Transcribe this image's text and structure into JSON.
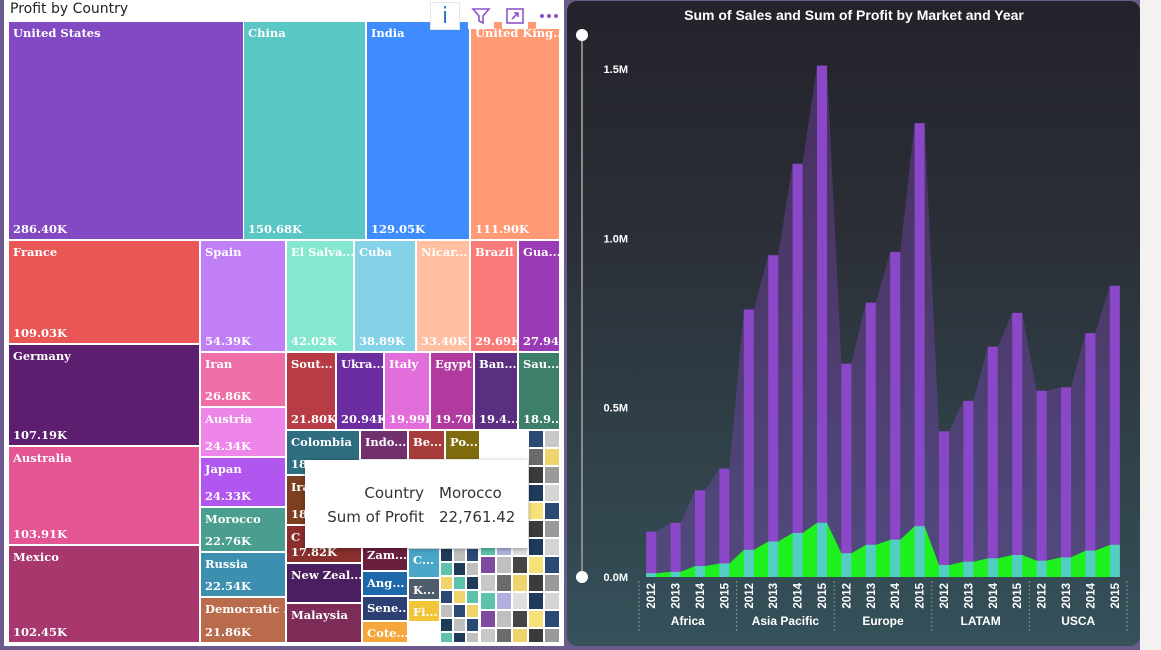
{
  "treemap": {
    "title": "Profit by Country",
    "toolbar": {
      "info_glyph": "i",
      "icons": [
        "filter-icon",
        "focus-mode-icon",
        "more-options-icon"
      ]
    },
    "tiles": [
      {
        "name": "United States",
        "value": "286.40K",
        "color": "#8249c2"
      },
      {
        "name": "China",
        "value": "150.68K",
        "color": "#5ac7c5"
      },
      {
        "name": "India",
        "value": "129.05K",
        "color": "#3f8cff"
      },
      {
        "name": "United King...",
        "value": "111.90K",
        "color": "#ff9a75"
      },
      {
        "name": "France",
        "value": "109.03K",
        "color": "#ea5556"
      },
      {
        "name": "Germany",
        "value": "107.19K",
        "color": "#5c1f6f"
      },
      {
        "name": "Australia",
        "value": "103.91K",
        "color": "#e35593"
      },
      {
        "name": "Mexico",
        "value": "102.45K",
        "color": "#a8376d"
      },
      {
        "name": "Spain",
        "value": "54.39K",
        "color": "#c07ff4"
      },
      {
        "name": "El Salva...",
        "value": "42.02K",
        "color": "#84e7cf"
      },
      {
        "name": "Cuba",
        "value": "38.89K",
        "color": "#84d2e8"
      },
      {
        "name": "Nicar...",
        "value": "33.40K",
        "color": "#ffbfa0"
      },
      {
        "name": "Brazil",
        "value": "29.69K",
        "color": "#f87b7a"
      },
      {
        "name": "Gua...",
        "value": "27.94K",
        "color": "#9a3ab4"
      },
      {
        "name": "Iran",
        "value": "26.86K",
        "color": "#ee6fa7"
      },
      {
        "name": "Austria",
        "value": "24.34K",
        "color": "#ee86ea"
      },
      {
        "name": "Japan",
        "value": "24.33K",
        "color": "#b256f0"
      },
      {
        "name": "Morocco",
        "value": "22.76K",
        "color": "#4a9e8f"
      },
      {
        "name": "Russia",
        "value": "22.54K",
        "color": "#3d8fb0"
      },
      {
        "name": "Democratic ...",
        "value": "21.86K",
        "color": "#ba6b4c"
      },
      {
        "name": "Sout...",
        "value": "21.80K",
        "color": "#b83c45"
      },
      {
        "name": "Ukra...",
        "value": "20.94K",
        "color": "#6c2da0"
      },
      {
        "name": "Italy",
        "value": "19.99K",
        "color": "#e26edc"
      },
      {
        "name": "Egypt",
        "value": "19.70K",
        "color": "#b13a9f"
      },
      {
        "name": "Ban...",
        "value": "19.4...",
        "color": "#5a2e80"
      },
      {
        "name": "Sau...",
        "value": "18.9...",
        "color": "#3e7f6c"
      },
      {
        "name": "Colombia",
        "value": "18",
        "color": "#2f6d80"
      },
      {
        "name": "Indo...",
        "value": "",
        "color": "#73306f"
      },
      {
        "name": "Be...",
        "value": "",
        "color": "#a73c3c"
      },
      {
        "name": "Po...",
        "value": "",
        "color": "#7f6c0e"
      },
      {
        "name": "Ira",
        "value": "18",
        "color": "#7c3f1f"
      },
      {
        "name": "C",
        "value": "17.82K",
        "color": "#8a2e2e"
      },
      {
        "name": "Zam...",
        "value": "",
        "color": "#6b1f3f"
      },
      {
        "name": "New Zeal...",
        "value": "",
        "color": "#4b1f5f"
      },
      {
        "name": "Ang...",
        "value": "",
        "color": "#1f68a8"
      },
      {
        "name": "Malaysia",
        "value": "",
        "color": "#7d2c57"
      },
      {
        "name": "Sene...",
        "value": "",
        "color": "#2c3e72"
      },
      {
        "name": "C...",
        "value": "",
        "color": "#4aa6c8"
      },
      {
        "name": "K...",
        "value": "",
        "color": "#4f5c6b"
      },
      {
        "name": "Fi...",
        "value": "",
        "color": "#f2c437"
      },
      {
        "name": "Cote...",
        "value": "",
        "color": "#f5a63c"
      }
    ],
    "tooltip": {
      "k1": "Country",
      "v1": "Morocco",
      "k2": "Sum of Profit",
      "v2": "22,761.42"
    }
  },
  "chart_data": {
    "type": "bar",
    "title": "Sum of Sales and Sum of Profit by Market and Year",
    "markets": [
      "Africa",
      "Asia Pacific",
      "Europe",
      "LATAM",
      "USCA"
    ],
    "years": [
      "2012",
      "2013",
      "2014",
      "2015"
    ],
    "ylim": [
      0,
      1500000
    ],
    "y_ticks": [
      "0.0M",
      "0.5M",
      "1.0M",
      "1.5M"
    ],
    "y_tick_values": [
      0,
      500000,
      1000000,
      1500000
    ],
    "series": [
      {
        "name": "Sum of Sales",
        "color": "#8a47c8",
        "values": [
          134000,
          160000,
          256000,
          320000,
          790000,
          950000,
          1220000,
          1510000,
          630000,
          810000,
          960000,
          1340000,
          430000,
          520000,
          680000,
          780000,
          550000,
          560000,
          720000,
          860000
        ]
      },
      {
        "name": "Sum of Profit",
        "color": "#52cfc2",
        "values": [
          11000,
          15000,
          32000,
          40000,
          80000,
          105000,
          130000,
          160000,
          70000,
          95000,
          110000,
          150000,
          35000,
          45000,
          55000,
          65000,
          48000,
          58000,
          78000,
          95000
        ]
      }
    ],
    "area_color": "#1ef01e",
    "grid": false,
    "legend": "none"
  }
}
